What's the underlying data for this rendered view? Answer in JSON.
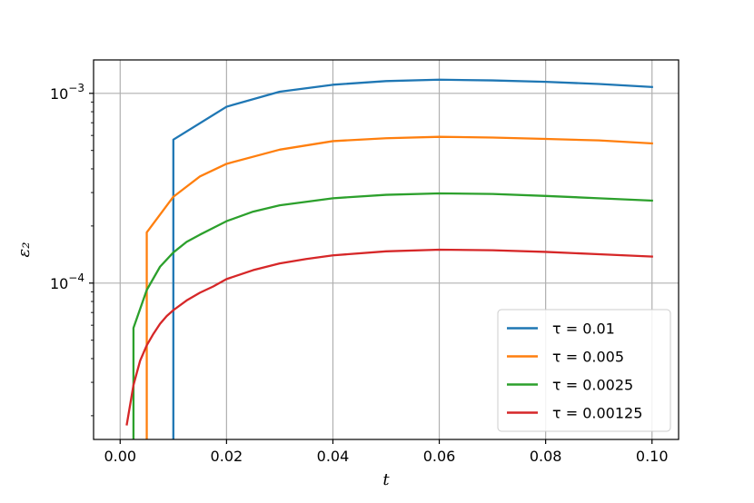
{
  "chart_data": {
    "type": "line",
    "title": "",
    "xlabel": "t",
    "ylabel": "ε₂",
    "xscale": "linear",
    "yscale": "log",
    "xlim": [
      -0.005,
      0.105
    ],
    "ylim": [
      1.5e-05,
      0.0015
    ],
    "grid": true,
    "legend_position": "lower right",
    "x_ticks": [
      0.0,
      0.02,
      0.04,
      0.06,
      0.08,
      0.1
    ],
    "x_tick_labels": [
      "0.00",
      "0.02",
      "0.04",
      "0.06",
      "0.08",
      "0.10"
    ],
    "y_ticks": [
      0.0001,
      0.001
    ],
    "y_tick_labels": [
      {
        "base": "10",
        "exp": "−4"
      },
      {
        "base": "10",
        "exp": "−3"
      }
    ],
    "series": [
      {
        "name": "τ = 0.01",
        "color": "#1f77b4",
        "x": [
          0.01,
          0.01,
          0.02,
          0.03,
          0.04,
          0.05,
          0.06,
          0.07,
          0.08,
          0.09,
          0.1
        ],
        "y": [
          1.5e-05,
          0.00057,
          0.00085,
          0.00102,
          0.00111,
          0.00116,
          0.00118,
          0.00117,
          0.00115,
          0.00112,
          0.00108
        ]
      },
      {
        "name": "τ = 0.005",
        "color": "#ff7f0e",
        "x": [
          0.005,
          0.005,
          0.01,
          0.015,
          0.02,
          0.03,
          0.04,
          0.05,
          0.06,
          0.07,
          0.08,
          0.09,
          0.1
        ],
        "y": [
          1.5e-05,
          0.000185,
          0.000285,
          0.000365,
          0.000425,
          0.000505,
          0.00056,
          0.00058,
          0.00059,
          0.000585,
          0.000575,
          0.000565,
          0.000545
        ]
      },
      {
        "name": "τ = 0.0025",
        "color": "#2ca02c",
        "x": [
          0.0025,
          0.0025,
          0.005,
          0.0075,
          0.01,
          0.0125,
          0.015,
          0.02,
          0.025,
          0.03,
          0.04,
          0.05,
          0.06,
          0.07,
          0.08,
          0.09,
          0.1
        ],
        "y": [
          1.5e-05,
          5.8e-05,
          9.2e-05,
          0.000122,
          0.000145,
          0.000165,
          0.00018,
          0.000212,
          0.000238,
          0.000257,
          0.00028,
          0.000292,
          0.000297,
          0.000295,
          0.000288,
          0.00028,
          0.000272
        ]
      },
      {
        "name": "τ = 0.00125",
        "color": "#d62728",
        "x": [
          0.00125,
          0.0025,
          0.00375,
          0.005,
          0.00625,
          0.0075,
          0.00875,
          0.01,
          0.0125,
          0.015,
          0.0175,
          0.02,
          0.025,
          0.03,
          0.035,
          0.04,
          0.05,
          0.06,
          0.07,
          0.08,
          0.09,
          0.1
        ],
        "y": [
          1.8e-05,
          2.9e-05,
          3.9e-05,
          4.7e-05,
          5.4e-05,
          6.1e-05,
          6.7e-05,
          7.2e-05,
          8.1e-05,
          8.9e-05,
          9.6e-05,
          0.000105,
          0.000117,
          0.000127,
          0.000134,
          0.00014,
          0.000147,
          0.00015,
          0.000149,
          0.000146,
          0.000142,
          0.000138
        ]
      }
    ]
  }
}
